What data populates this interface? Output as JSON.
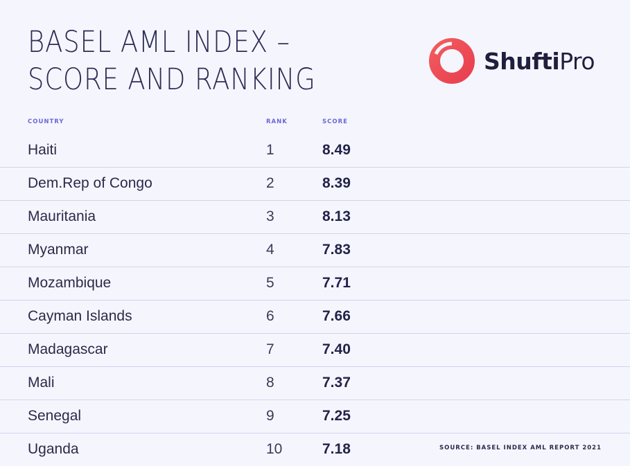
{
  "title": {
    "line1": "BASEL AML INDEX –",
    "line2": "SCORE AND RANKING"
  },
  "logo": {
    "brand_bold": "Shufti",
    "brand_light": "Pro",
    "icon": "shufti-pro-ring-icon",
    "color": "#f0505a"
  },
  "colors": {
    "background": "#f5f6fd",
    "header_text": "#6b66d6",
    "divider": "#cfd3ee"
  },
  "chart_data": {
    "type": "table",
    "columns": [
      "COUNTRY",
      "RANK",
      "SCORE"
    ],
    "rows": [
      {
        "country": "Haiti",
        "rank": "1",
        "score": "8.49"
      },
      {
        "country": "Dem.Rep of Congo",
        "rank": "2",
        "score": "8.39"
      },
      {
        "country": "Mauritania",
        "rank": "3",
        "score": "8.13"
      },
      {
        "country": "Myanmar",
        "rank": "4",
        "score": "7.83"
      },
      {
        "country": "Mozambique",
        "rank": "5",
        "score": "7.71"
      },
      {
        "country": "Cayman Islands",
        "rank": "6",
        "score": "7.66"
      },
      {
        "country": "Madagascar",
        "rank": "7",
        "score": "7.40"
      },
      {
        "country": "Mali",
        "rank": "8",
        "score": "7.37"
      },
      {
        "country": "Senegal",
        "rank": "9",
        "score": "7.25"
      },
      {
        "country": "Uganda",
        "rank": "10",
        "score": "7.18"
      }
    ],
    "source": "SOURCE: BASEL INDEX AML REPORT 2021"
  }
}
